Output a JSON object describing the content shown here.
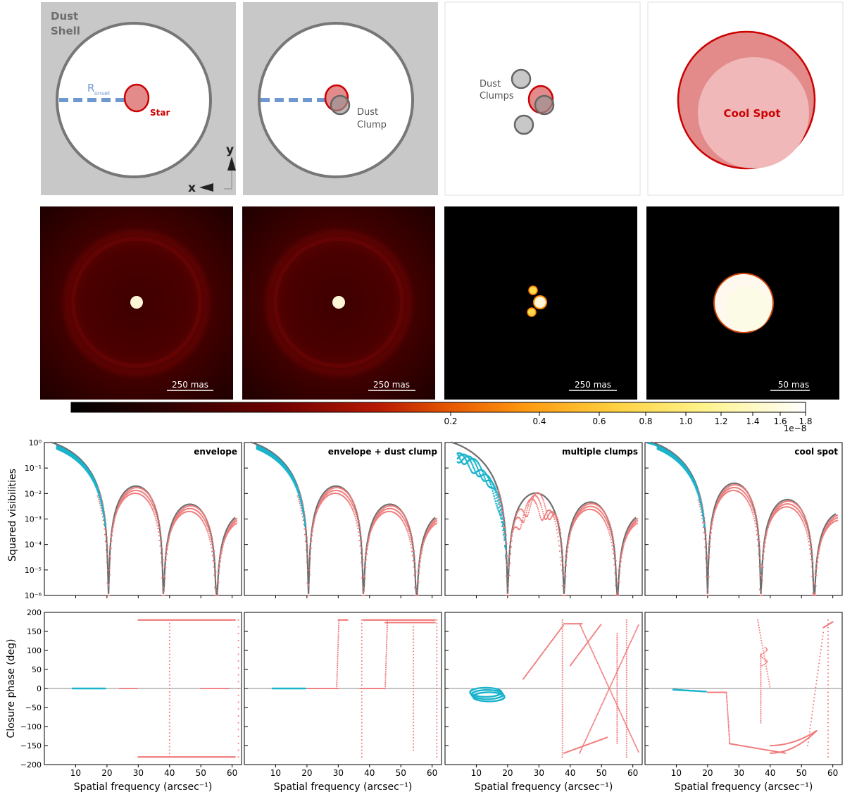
{
  "schematics": {
    "dust_shell_label_1": "Dust",
    "dust_shell_label_2": "Shell",
    "r_onset_main": "R",
    "r_onset_sub": "onset",
    "star_label": "Star",
    "axis_y": "y",
    "axis_x": "x",
    "dust_clump_label_1": "Dust",
    "dust_clump_label_2": "Clump",
    "dust_clumps_label_1": "Dust",
    "dust_clumps_label_2": "Clumps",
    "cool_spot_label": "Cool Spot"
  },
  "images": {
    "scalebars": [
      "250 mas",
      "250 mas",
      "250 mas",
      "50 mas"
    ]
  },
  "colorbar": {
    "ticks": [
      "0.2",
      "0.4",
      "0.6",
      "0.8",
      "1.0",
      "1.2",
      "1.4",
      "1.6",
      "1.8"
    ],
    "multiplier": "1e−8"
  },
  "plots": {
    "titles": [
      "envelope",
      "envelope + dust clump",
      "multiple clumps",
      "cool spot"
    ],
    "vis_ylabel": "Squared visibilities",
    "cp_ylabel": "Closure phase (deg)",
    "xlabel": "Spatial frequency (arcsec⁻¹)",
    "vis_yticks": [
      "10⁰",
      "10⁻¹",
      "10⁻²",
      "10⁻³",
      "10⁻⁴",
      "10⁻⁵",
      "10⁻⁶"
    ],
    "cp_yticks": [
      "200",
      "150",
      "100",
      "50",
      "0",
      "−50",
      "−100",
      "−150",
      "−200"
    ],
    "xticks": [
      "10",
      "20",
      "30",
      "40",
      "50",
      "60"
    ]
  },
  "colors": {
    "shell_bg": "#c8c8c8",
    "shell_ring": "#777777",
    "star_fill": "#e38a8a",
    "star_edge": "#cc0000",
    "dash": "#6f98cf",
    "model_grey": "#6e6e6e",
    "short_baseline": "#1ab3cc",
    "long_baseline": "#f07c7c"
  },
  "chart_data": [
    {
      "type": "scatter",
      "panel": "envelope",
      "x_range": [
        0,
        63
      ],
      "y_scale": "log",
      "ylim": [
        1e-06,
        1
      ],
      "xlabel": "Spatial frequency (arcsec⁻¹)",
      "ylabel": "Squared visibilities",
      "nulls": [
        20.5,
        38,
        55
      ]
    },
    {
      "type": "scatter",
      "panel": "envelope + dust clump",
      "x_range": [
        0,
        63
      ],
      "y_scale": "log",
      "ylim": [
        1e-06,
        1
      ],
      "xlabel": "Spatial frequency (arcsec⁻¹)",
      "nulls": [
        20.5,
        38,
        55
      ]
    },
    {
      "type": "scatter",
      "panel": "multiple clumps",
      "x_range": [
        0,
        63
      ],
      "y_scale": "log",
      "ylim": [
        1e-06,
        1
      ],
      "xlabel": "Spatial frequency (arcsec⁻¹)",
      "nulls": [
        20,
        38,
        55
      ]
    },
    {
      "type": "scatter",
      "panel": "cool spot",
      "x_range": [
        0,
        63
      ],
      "y_scale": "log",
      "ylim": [
        1e-06,
        1
      ],
      "xlabel": "Spatial frequency (arcsec⁻¹)",
      "nulls": [
        20,
        37,
        54
      ]
    },
    {
      "type": "scatter",
      "panel": "closure phase",
      "ylim": [
        -200,
        200
      ],
      "x_range": [
        0,
        63
      ],
      "ylabel": "Closure phase (deg)",
      "xlabel": "Spatial frequency (arcsec⁻¹)"
    }
  ]
}
